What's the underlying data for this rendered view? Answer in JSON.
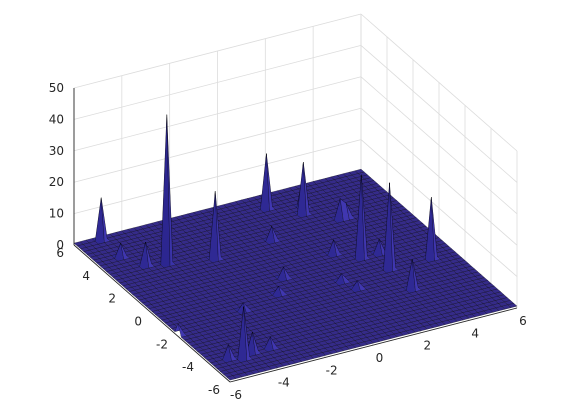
{
  "chart_data": {
    "type": "surface",
    "title": "",
    "xlabel": "",
    "ylabel": "",
    "zlabel": "",
    "xlim": [
      -6,
      6
    ],
    "ylim": [
      -6,
      6
    ],
    "zlim": [
      0,
      50
    ],
    "x_ticks": [
      "-6",
      "-4",
      "-2",
      "0",
      "2",
      "4",
      "6"
    ],
    "y_ticks": [
      "-6",
      "-4",
      "-2",
      "0",
      "2",
      "4",
      "6"
    ],
    "z_ticks": [
      "0",
      "10",
      "20",
      "30",
      "40",
      "50"
    ],
    "grid": true,
    "colormap": "parula",
    "base_color": "#3a33a8",
    "edge_color": "#000000",
    "peak_color": "#2aa8e6",
    "view": {
      "azimuth_deg": -37.5,
      "elevation_deg": 30
    },
    "surface": {
      "x_range": [
        -6,
        6
      ],
      "y_range": [
        -6,
        6
      ],
      "grid_points": 49,
      "baseline_z": 0.6,
      "peaks": [
        {
          "x": -3.7,
          "y": 3.1,
          "z": 48
        },
        {
          "x": -1.9,
          "y": 2.6,
          "z": 22
        },
        {
          "x": -4.4,
          "y": 3.3,
          "z": 8
        },
        {
          "x": -4.9,
          "y": 4.2,
          "z": 5
        },
        {
          "x": 1.6,
          "y": 5.1,
          "z": 18
        },
        {
          "x": 2.6,
          "y": 4.0,
          "z": 17
        },
        {
          "x": 2.7,
          "y": 4.6,
          "z": 10
        },
        {
          "x": 3.6,
          "y": 2.9,
          "z": 7
        },
        {
          "x": 3.8,
          "y": 3.0,
          "z": 5
        },
        {
          "x": 0.5,
          "y": 2.7,
          "z": 5
        },
        {
          "x": 5.1,
          "y": -1.2,
          "z": 20
        },
        {
          "x": 3.2,
          "y": -1.2,
          "z": 28
        },
        {
          "x": 2.7,
          "y": 0.0,
          "z": 27
        },
        {
          "x": 1.9,
          "y": 0.7,
          "z": 5
        },
        {
          "x": 3.6,
          "y": 0.1,
          "z": 5
        },
        {
          "x": -0.4,
          "y": -0.1,
          "z": 4
        },
        {
          "x": 1.2,
          "y": -1.2,
          "z": 3
        },
        {
          "x": 1.5,
          "y": -2.1,
          "z": 3
        },
        {
          "x": 3.2,
          "y": -3.1,
          "z": 10
        },
        {
          "x": -3.1,
          "y": -1.6,
          "z": 3
        },
        {
          "x": -1.2,
          "y": -0.9,
          "z": 3
        },
        {
          "x": -5.3,
          "y": -4.5,
          "z": 5
        },
        {
          "x": -4.8,
          "y": -4.8,
          "z": 17
        },
        {
          "x": -4.2,
          "y": -4.5,
          "z": 7
        },
        {
          "x": -3.6,
          "y": -4.4,
          "z": 4
        },
        {
          "x": -4.9,
          "y": 5.8,
          "z": 14
        },
        {
          "x": -6.0,
          "y": -2.0,
          "z": 4
        }
      ]
    }
  }
}
